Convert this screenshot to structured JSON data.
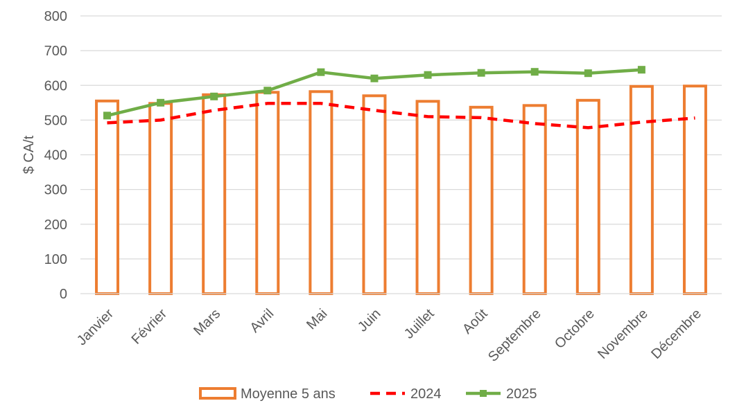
{
  "chart_data": {
    "type": "bar",
    "title": "",
    "xlabel": "",
    "ylabel": "$ CA/t",
    "ylim": [
      0,
      800
    ],
    "yticks": [
      0,
      100,
      200,
      300,
      400,
      500,
      600,
      700,
      800
    ],
    "grid": true,
    "legend_position": "bottom",
    "categories": [
      "Janvier",
      "Février",
      "Mars",
      "Avril",
      "Mai",
      "Juin",
      "Juillet",
      "Août",
      "Septembre",
      "Octobre",
      "Novembre",
      "Décembre"
    ],
    "series": [
      {
        "name": "Moyenne 5 ans",
        "type": "bar",
        "style": "outline",
        "color": "#ED7D31",
        "values": [
          555,
          548,
          573,
          580,
          582,
          570,
          554,
          537,
          542,
          557,
          597,
          598
        ]
      },
      {
        "name": "2024",
        "type": "line",
        "style": "dashed",
        "color": "#FF0000",
        "values": [
          492,
          500,
          528,
          548,
          548,
          528,
          510,
          507,
          490,
          478,
          494,
          506
        ]
      },
      {
        "name": "2025",
        "type": "line",
        "style": "solid-markers",
        "color": "#70AD47",
        "values": [
          513,
          550,
          568,
          585,
          638,
          620,
          630,
          636,
          639,
          635,
          645,
          null
        ]
      }
    ]
  }
}
